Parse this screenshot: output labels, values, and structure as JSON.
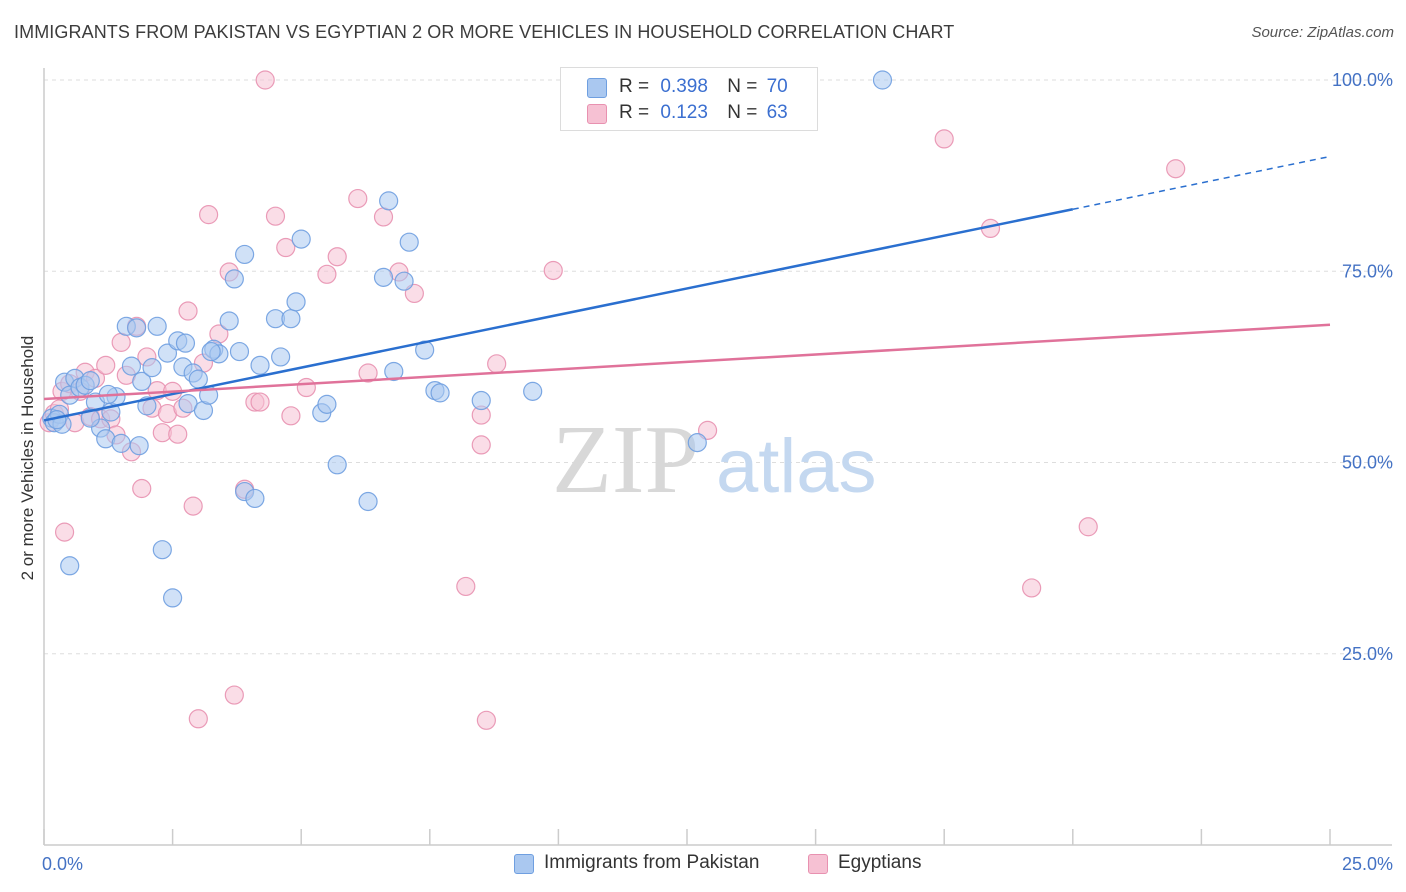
{
  "header": {
    "title": "IMMIGRANTS FROM PAKISTAN VS EGYPTIAN 2 OR MORE VEHICLES IN HOUSEHOLD CORRELATION CHART",
    "source": "Source: ZipAtlas.com"
  },
  "colors": {
    "blue": "#6f9fe0",
    "blue_fill": "#aac8f0",
    "blue_line": "#2a6fcf",
    "pink": "#e891b0",
    "pink_fill": "#f6c1d3",
    "pink_line": "#e0729a",
    "axis_label": "#4472c4"
  },
  "legend": {
    "r_label": "R =",
    "n_label": "N =",
    "blue": {
      "r": "0.398",
      "n": "70"
    },
    "pink": {
      "r": "0.123",
      "n": "63"
    }
  },
  "watermark": {
    "zip": "ZIP",
    "atlas": "atlas"
  },
  "chart_data": {
    "type": "scatter",
    "title": "IMMIGRANTS FROM PAKISTAN VS EGYPTIAN 2 OR MORE VEHICLES IN HOUSEHOLD CORRELATION CHART",
    "xlabel": "",
    "ylabel": "2 or more Vehicles in Household",
    "xlim": [
      0,
      25
    ],
    "ylim": [
      0,
      105
    ],
    "x_tick_labels": [
      "0.0%",
      "25.0%"
    ],
    "y_ticks": [
      25,
      50,
      75,
      100
    ],
    "y_tick_labels": [
      "25.0%",
      "50.0%",
      "75.0%",
      "100.0%"
    ],
    "grid": true,
    "legend_position": "top-center",
    "series": [
      {
        "name": "Immigrants from Pakistan",
        "color": "#6f9fe0",
        "r": 0.398,
        "n": 70,
        "trend": {
          "x0": 0,
          "y0": 55.5,
          "x1": 25,
          "y1": 90.0,
          "solid_until_x": 20
        },
        "points": [
          [
            0.15,
            55.8
          ],
          [
            0.2,
            55.2
          ],
          [
            0.3,
            56.3
          ],
          [
            0.35,
            55.0
          ],
          [
            0.4,
            60.5
          ],
          [
            0.5,
            58.8
          ],
          [
            0.6,
            61.0
          ],
          [
            0.7,
            59.8
          ],
          [
            0.8,
            60.1
          ],
          [
            0.9,
            60.7
          ],
          [
            1.0,
            57.9
          ],
          [
            1.1,
            54.5
          ],
          [
            1.2,
            53.1
          ],
          [
            1.3,
            56.6
          ],
          [
            1.4,
            58.6
          ],
          [
            1.5,
            52.5
          ],
          [
            1.6,
            67.8
          ],
          [
            1.7,
            62.6
          ],
          [
            1.8,
            67.6
          ],
          [
            1.85,
            52.2
          ],
          [
            1.9,
            60.6
          ],
          [
            2.0,
            57.4
          ],
          [
            2.1,
            62.4
          ],
          [
            2.2,
            67.8
          ],
          [
            2.3,
            38.6
          ],
          [
            2.4,
            64.3
          ],
          [
            2.5,
            32.3
          ],
          [
            2.6,
            65.9
          ],
          [
            2.7,
            62.5
          ],
          [
            2.8,
            57.7
          ],
          [
            2.9,
            61.7
          ],
          [
            3.0,
            60.9
          ],
          [
            3.1,
            56.8
          ],
          [
            3.2,
            58.8
          ],
          [
            3.3,
            64.8
          ],
          [
            3.4,
            64.2
          ],
          [
            3.6,
            68.5
          ],
          [
            3.7,
            74.0
          ],
          [
            3.8,
            64.5
          ],
          [
            3.9,
            77.2
          ],
          [
            3.9,
            46.2
          ],
          [
            4.1,
            45.3
          ],
          [
            4.2,
            62.7
          ],
          [
            4.5,
            68.8
          ],
          [
            4.6,
            63.8
          ],
          [
            4.8,
            68.8
          ],
          [
            4.9,
            71.0
          ],
          [
            5.0,
            79.2
          ],
          [
            5.4,
            56.5
          ],
          [
            5.5,
            57.6
          ],
          [
            5.7,
            49.7
          ],
          [
            6.3,
            44.9
          ],
          [
            6.6,
            74.2
          ],
          [
            6.7,
            84.2
          ],
          [
            6.8,
            61.9
          ],
          [
            7.0,
            73.7
          ],
          [
            7.1,
            78.8
          ],
          [
            7.4,
            64.7
          ],
          [
            7.6,
            59.4
          ],
          [
            7.7,
            59.1
          ],
          [
            8.5,
            58.1
          ],
          [
            9.5,
            59.3
          ],
          [
            12.7,
            52.6
          ],
          [
            16.3,
            100.0
          ],
          [
            0.5,
            36.5
          ],
          [
            0.25,
            55.6
          ],
          [
            0.9,
            55.8
          ],
          [
            1.25,
            58.9
          ],
          [
            2.75,
            65.6
          ],
          [
            3.25,
            64.5
          ]
        ]
      },
      {
        "name": "Egyptians",
        "color": "#e891b0",
        "r": 0.123,
        "n": 63,
        "trend": {
          "x0": 0,
          "y0": 58.3,
          "x1": 25,
          "y1": 68.0
        },
        "points": [
          [
            0.1,
            55.2
          ],
          [
            0.2,
            56.4
          ],
          [
            0.3,
            57.0
          ],
          [
            0.35,
            59.3
          ],
          [
            0.4,
            40.9
          ],
          [
            0.5,
            60.3
          ],
          [
            0.6,
            55.2
          ],
          [
            0.7,
            59.3
          ],
          [
            0.8,
            61.8
          ],
          [
            0.9,
            56.0
          ],
          [
            1.0,
            61.0
          ],
          [
            1.1,
            55.7
          ],
          [
            1.2,
            62.7
          ],
          [
            1.3,
            55.7
          ],
          [
            1.4,
            53.6
          ],
          [
            1.5,
            65.7
          ],
          [
            1.6,
            61.4
          ],
          [
            1.7,
            51.4
          ],
          [
            1.8,
            67.8
          ],
          [
            1.9,
            46.6
          ],
          [
            2.0,
            63.8
          ],
          [
            2.1,
            57.1
          ],
          [
            2.2,
            59.4
          ],
          [
            2.3,
            53.9
          ],
          [
            2.4,
            56.4
          ],
          [
            2.5,
            59.3
          ],
          [
            2.6,
            53.7
          ],
          [
            2.7,
            57.1
          ],
          [
            2.8,
            69.8
          ],
          [
            2.9,
            44.3
          ],
          [
            3.0,
            16.5
          ],
          [
            3.1,
            63.0
          ],
          [
            3.2,
            82.4
          ],
          [
            3.4,
            66.8
          ],
          [
            3.6,
            74.9
          ],
          [
            3.7,
            19.6
          ],
          [
            3.9,
            46.5
          ],
          [
            4.1,
            57.9
          ],
          [
            4.2,
            57.9
          ],
          [
            4.3,
            100.0
          ],
          [
            4.5,
            82.2
          ],
          [
            4.7,
            78.1
          ],
          [
            4.8,
            56.1
          ],
          [
            5.1,
            59.8
          ],
          [
            5.5,
            74.6
          ],
          [
            5.7,
            76.9
          ],
          [
            6.1,
            84.5
          ],
          [
            6.3,
            61.7
          ],
          [
            6.6,
            82.1
          ],
          [
            6.9,
            74.9
          ],
          [
            7.2,
            72.1
          ],
          [
            8.2,
            33.8
          ],
          [
            8.5,
            56.2
          ],
          [
            8.6,
            16.3
          ],
          [
            8.8,
            62.9
          ],
          [
            9.9,
            75.1
          ],
          [
            12.9,
            54.2
          ],
          [
            17.5,
            92.3
          ],
          [
            18.4,
            80.6
          ],
          [
            19.2,
            33.6
          ],
          [
            20.3,
            41.6
          ],
          [
            22.0,
            88.4
          ],
          [
            8.5,
            52.3
          ]
        ]
      }
    ]
  },
  "bottom_legend": {
    "blue_label": "Immigrants from Pakistan",
    "pink_label": "Egyptians"
  }
}
